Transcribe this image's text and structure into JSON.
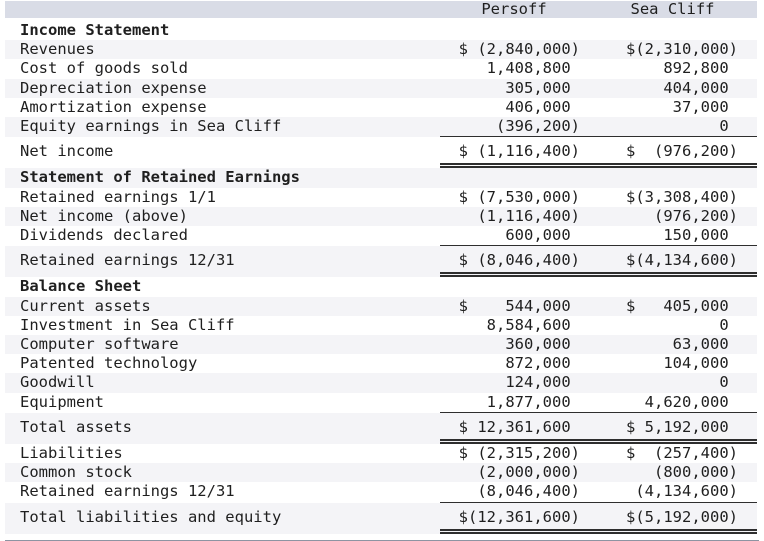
{
  "columns": {
    "persoff": "Persoff",
    "seacliff": "Sea Cliff"
  },
  "rows": [
    {
      "label": "Income Statement",
      "persoff": "",
      "seacliff": ""
    },
    {
      "label": "Revenues",
      "persoff": "$ (2,840,000)",
      "seacliff": "$(2,310,000)"
    },
    {
      "label": "Cost of goods sold",
      "persoff": "1,408,800 ",
      "seacliff": "892,800 "
    },
    {
      "label": "Depreciation expense",
      "persoff": "305,000 ",
      "seacliff": "404,000 "
    },
    {
      "label": "Amortization expense",
      "persoff": "406,000 ",
      "seacliff": "37,000 "
    },
    {
      "label": "Equity earnings in Sea Cliff",
      "persoff": "(396,200)",
      "seacliff": "0 "
    },
    {
      "label": "Net income",
      "persoff": "$ (1,116,400)",
      "seacliff": "$  (976,200)"
    },
    {
      "label": "Statement of Retained Earnings",
      "persoff": "",
      "seacliff": ""
    },
    {
      "label": "Retained earnings 1/1",
      "persoff": "$ (7,530,000)",
      "seacliff": "$(3,308,400)"
    },
    {
      "label": "Net income (above)",
      "persoff": "(1,116,400)",
      "seacliff": "(976,200)"
    },
    {
      "label": "Dividends declared",
      "persoff": "600,000 ",
      "seacliff": "150,000 "
    },
    {
      "label": "Retained earnings 12/31",
      "persoff": "$ (8,046,400)",
      "seacliff": "$(4,134,600)"
    },
    {
      "label": "Balance Sheet",
      "persoff": "",
      "seacliff": ""
    },
    {
      "label": "Current assets",
      "persoff": "$    544,000 ",
      "seacliff": "$   405,000 "
    },
    {
      "label": "Investment in Sea Cliff",
      "persoff": "8,584,600 ",
      "seacliff": "0 "
    },
    {
      "label": "Computer software",
      "persoff": "360,000 ",
      "seacliff": "63,000 "
    },
    {
      "label": "Patented technology",
      "persoff": "872,000 ",
      "seacliff": "104,000 "
    },
    {
      "label": "Goodwill",
      "persoff": "124,000 ",
      "seacliff": "0 "
    },
    {
      "label": "Equipment",
      "persoff": "1,877,000 ",
      "seacliff": "4,620,000 "
    },
    {
      "label": "Total assets",
      "persoff": "$ 12,361,600 ",
      "seacliff": "$ 5,192,000 "
    },
    {
      "label": "Liabilities",
      "persoff": "$ (2,315,200)",
      "seacliff": "$  (257,400)"
    },
    {
      "label": "Common stock",
      "persoff": "(2,000,000)",
      "seacliff": "(800,000)"
    },
    {
      "label": "Retained earnings 12/31",
      "persoff": "(8,046,400)",
      "seacliff": "(4,134,600)"
    },
    {
      "label": "Total liabilities and equity",
      "persoff": "$(12,361,600)",
      "seacliff": "$(5,192,000)"
    }
  ],
  "colors": {
    "header_bg": "#d9dce6",
    "stripe_bg": "#f4f4f7",
    "rule": "#2e2e2e",
    "next_bar_border": "#8d94a2"
  }
}
